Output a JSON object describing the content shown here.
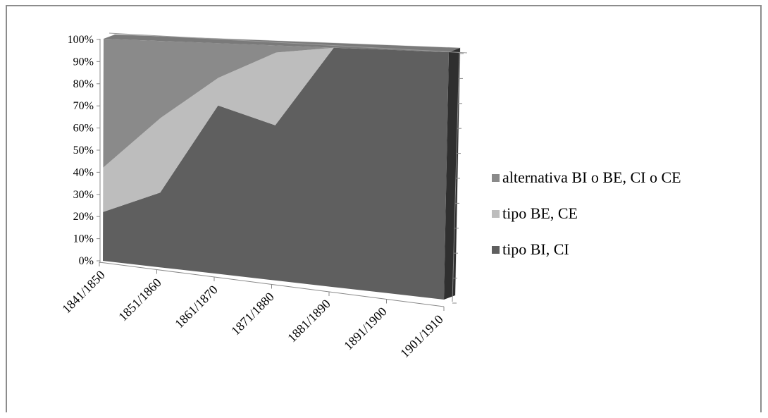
{
  "chart_data": {
    "type": "area",
    "stacked": "percent",
    "three_d": true,
    "categories": [
      "1841/1850",
      "1851/1860",
      "1861/1870",
      "1871/1880",
      "1881/1890",
      "1891/1900",
      "1901/1910"
    ],
    "series": [
      {
        "name": "tipo BI, CI",
        "values": [
          22,
          33,
          73,
          66,
          100,
          100,
          100
        ],
        "color": "#5f5f5f"
      },
      {
        "name": "tipo BE, CE",
        "values": [
          20,
          33,
          12,
          31,
          0,
          0,
          0
        ],
        "color": "#bdbdbd"
      },
      {
        "name": "alternativa BI o BE, CI o CE",
        "values": [
          58,
          34,
          15,
          3,
          0,
          0,
          0
        ],
        "color": "#8a8a8a"
      }
    ],
    "y_ticks": [
      "0%",
      "10%",
      "20%",
      "30%",
      "40%",
      "50%",
      "60%",
      "70%",
      "80%",
      "90%",
      "100%"
    ],
    "ylim": [
      0,
      100
    ],
    "legend_position": "right",
    "grid": false
  }
}
